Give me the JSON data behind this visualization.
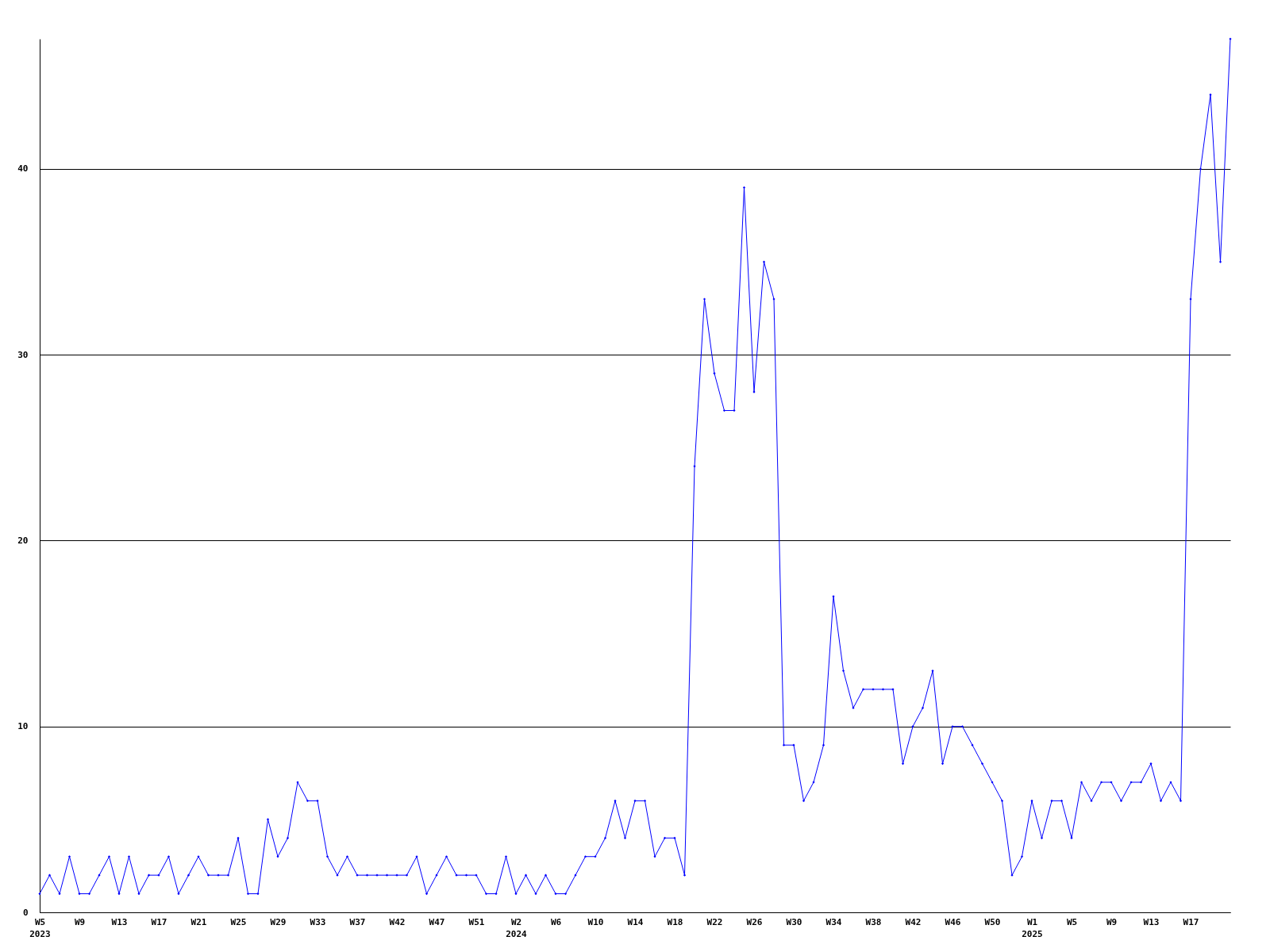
{
  "chart_data": {
    "type": "line",
    "categories": [
      "W5 2023",
      null,
      null,
      null,
      "W9",
      null,
      null,
      null,
      "W13",
      null,
      null,
      null,
      "W17",
      null,
      null,
      null,
      "W21",
      null,
      null,
      null,
      "W25",
      null,
      null,
      null,
      "W29",
      null,
      null,
      null,
      "W33",
      null,
      null,
      null,
      "W37",
      null,
      null,
      null,
      "W42",
      null,
      null,
      null,
      "W47",
      null,
      null,
      null,
      "W51",
      null,
      null,
      null,
      "W2 2024",
      null,
      null,
      null,
      "W6",
      null,
      null,
      null,
      "W10",
      null,
      null,
      null,
      "W14",
      null,
      null,
      null,
      "W18",
      null,
      null,
      null,
      "W22",
      null,
      null,
      null,
      "W26",
      null,
      null,
      null,
      "W30",
      null,
      null,
      null,
      "W34",
      null,
      null,
      null,
      "W38",
      null,
      null,
      null,
      "W42",
      null,
      null,
      null,
      "W46",
      null,
      null,
      null,
      "W50",
      null,
      null,
      null,
      "W1 2025",
      null,
      null,
      null,
      "W5",
      null,
      null,
      null,
      "W9",
      null,
      null,
      null,
      "W13",
      null,
      null,
      null,
      "W17",
      null,
      null,
      null,
      null
    ],
    "series": [
      {
        "color": "#0000ff",
        "values": [
          1,
          2,
          1,
          3,
          1,
          1,
          2,
          3,
          1,
          3,
          1,
          2,
          2,
          3,
          1,
          2,
          3,
          2,
          2,
          2,
          4,
          1,
          1,
          5,
          3,
          4,
          7,
          6,
          6,
          3,
          2,
          3,
          2,
          2,
          2,
          2,
          2,
          2,
          3,
          1,
          2,
          3,
          2,
          2,
          2,
          1,
          1,
          3,
          1,
          2,
          1,
          2,
          1,
          1,
          2,
          3,
          3,
          4,
          6,
          4,
          6,
          6,
          3,
          4,
          4,
          2,
          24,
          33,
          29,
          27,
          27,
          39,
          28,
          35,
          33,
          9,
          9,
          6,
          7,
          9,
          17,
          13,
          11,
          12,
          12,
          12,
          12,
          8,
          10,
          11,
          13,
          8,
          10,
          10,
          9,
          8,
          7,
          6,
          2,
          3,
          6,
          4,
          6,
          6,
          4,
          7,
          6,
          7,
          7,
          6,
          7,
          7,
          8,
          6,
          7,
          6,
          33,
          40,
          44,
          35,
          47
        ]
      }
    ],
    "ylim": [
      0,
      47
    ],
    "yticks": [
      0,
      10,
      20,
      30,
      40
    ],
    "grid": "y",
    "legend": false,
    "marker": "diamond",
    "line_style": "solid"
  }
}
